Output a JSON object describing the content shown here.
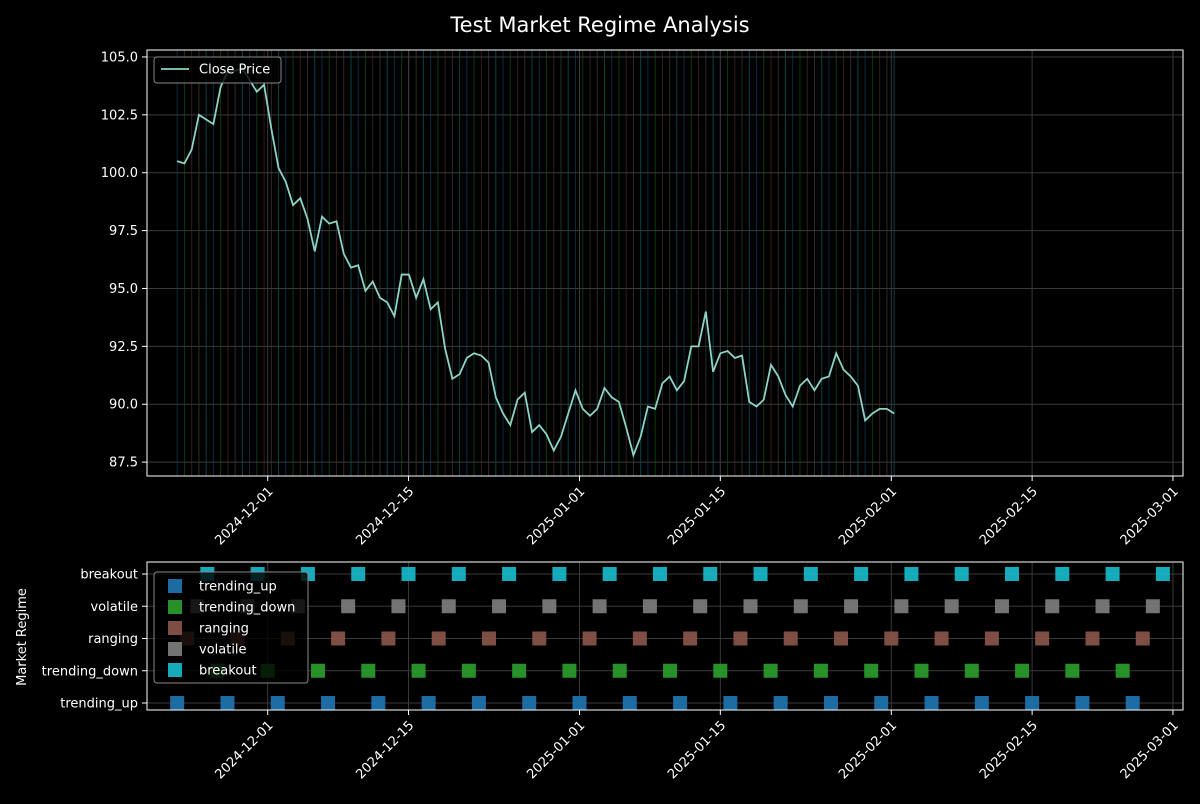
{
  "figure": {
    "title": "Test Market Regime Analysis",
    "background": "#000000",
    "foreground": "#ffffff",
    "grid_color": "#3a3a3a"
  },
  "chart_data": [
    {
      "type": "line",
      "title": "",
      "xlabel": "",
      "ylabel": "",
      "x_start_date": "2024-11-22",
      "x_step_days": 0.72,
      "xlim": [
        "2024-11-19",
        "2025-03-02"
      ],
      "ylim": [
        86.9,
        105.3
      ],
      "yticks": [
        87.5,
        90.0,
        92.5,
        95.0,
        97.5,
        100.0,
        102.5,
        105.0
      ],
      "ytick_labels": [
        "87.5",
        "90.0",
        "92.5",
        "95.0",
        "97.5",
        "100.0",
        "102.5",
        "105.0"
      ],
      "xticks": [
        "2024-12-01",
        "2024-12-15",
        "2025-01-01",
        "2025-01-15",
        "2025-02-01",
        "2025-02-15",
        "2025-03-01"
      ],
      "grid": true,
      "legend": {
        "placement": "upper-left",
        "entries": [
          "Close Price"
        ]
      },
      "series": [
        {
          "name": "Close Price",
          "color": "#8dd3c7",
          "values": [
            100.5,
            100.4,
            101.0,
            102.5,
            102.3,
            102.1,
            103.7,
            104.4,
            104.4,
            104.5,
            104.0,
            103.5,
            103.8,
            101.9,
            100.2,
            99.6,
            98.6,
            98.9,
            98.0,
            96.6,
            98.1,
            97.8,
            97.9,
            96.5,
            95.9,
            96.0,
            94.9,
            95.3,
            94.6,
            94.4,
            93.8,
            95.6,
            95.6,
            94.6,
            95.4,
            94.1,
            94.4,
            92.4,
            91.1,
            91.3,
            92.0,
            92.2,
            92.1,
            91.8,
            90.3,
            89.6,
            89.1,
            90.2,
            90.5,
            88.8,
            89.1,
            88.7,
            88.0,
            88.6,
            89.6,
            90.6,
            89.8,
            89.5,
            89.8,
            90.7,
            90.3,
            90.1,
            89.0,
            87.8,
            88.6,
            89.9,
            89.8,
            90.9,
            91.2,
            90.6,
            91.0,
            92.5,
            92.5,
            94.0,
            91.4,
            92.2,
            92.3,
            92.0,
            92.1,
            90.1,
            89.9,
            90.2,
            91.7,
            91.2,
            90.4,
            89.9,
            90.8,
            91.1,
            90.6,
            91.1,
            91.2,
            92.2,
            91.5,
            91.2,
            90.8,
            89.3,
            89.6,
            89.8,
            89.8,
            89.6
          ]
        }
      ]
    },
    {
      "type": "scatter",
      "title": "",
      "xlabel": "",
      "ylabel": "Market Regime",
      "xlim": [
        "2024-11-19",
        "2025-03-02"
      ],
      "xticks": [
        "2024-12-01",
        "2024-12-15",
        "2025-01-01",
        "2025-01-15",
        "2025-02-01",
        "2025-02-15",
        "2025-03-01"
      ],
      "categories": [
        "trending_up",
        "trending_down",
        "ranging",
        "volatile",
        "breakout"
      ],
      "grid": true,
      "legend": {
        "placement": "upper-left",
        "entries": [
          "trending_up",
          "trending_down",
          "ranging",
          "volatile",
          "breakout"
        ]
      },
      "series": [
        {
          "name": "trending_up",
          "color": "#1f77b4",
          "category": "trending_up",
          "start_date": "2024-11-22",
          "step_days": 5
        },
        {
          "name": "trending_down",
          "color": "#2ca02c",
          "category": "trending_down",
          "start_date": "2024-11-26",
          "step_days": 5
        },
        {
          "name": "ranging",
          "color": "#8c564b",
          "category": "ranging",
          "start_date": "2024-11-23",
          "step_days": 5
        },
        {
          "name": "volatile",
          "color": "#7f7f7f",
          "category": "volatile",
          "start_date": "2024-11-24",
          "step_days": 5
        },
        {
          "name": "breakout",
          "color": "#17becf",
          "category": "breakout",
          "start_date": "2024-11-25",
          "step_days": 5
        }
      ],
      "end_date": "2025-02-28"
    }
  ]
}
